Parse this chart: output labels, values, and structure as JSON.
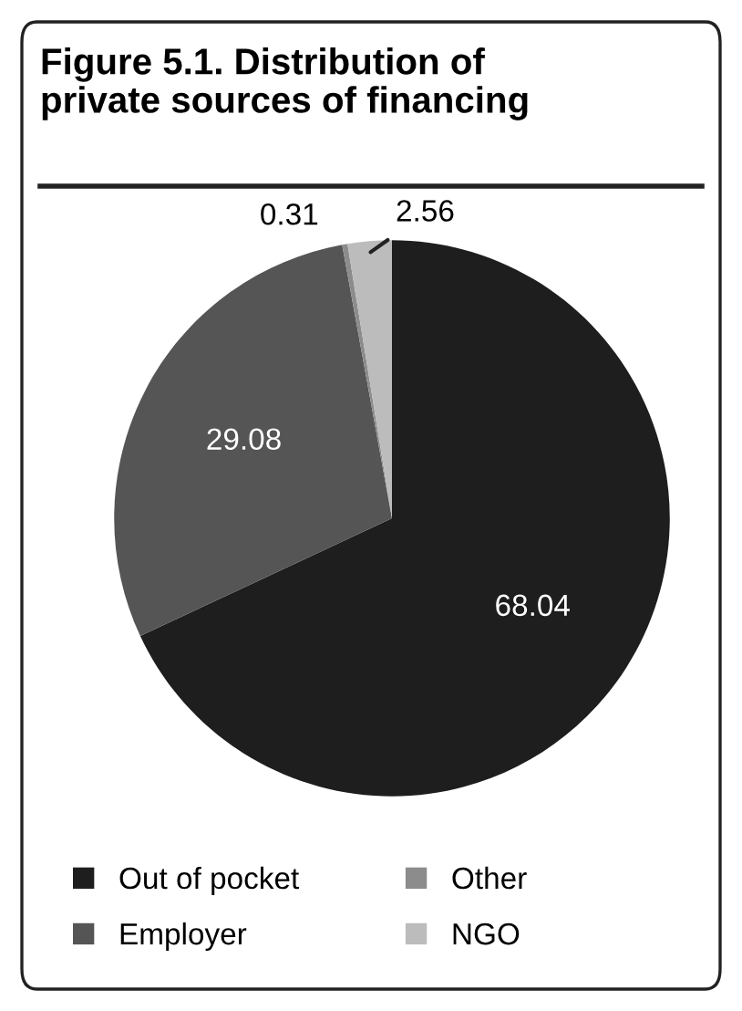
{
  "chart_data": {
    "type": "pie",
    "title": "Figure 5.1. Distribution of\nprivate sources of financing",
    "categories": [
      "Out of pocket",
      "Employer",
      "Other",
      "NGO"
    ],
    "values": [
      68.04,
      29.08,
      0.31,
      2.56
    ],
    "colors": [
      "#1e1e1e",
      "#555555",
      "#8c8c8c",
      "#bcbcbc"
    ],
    "data_labels": true,
    "legend": "bottom"
  }
}
